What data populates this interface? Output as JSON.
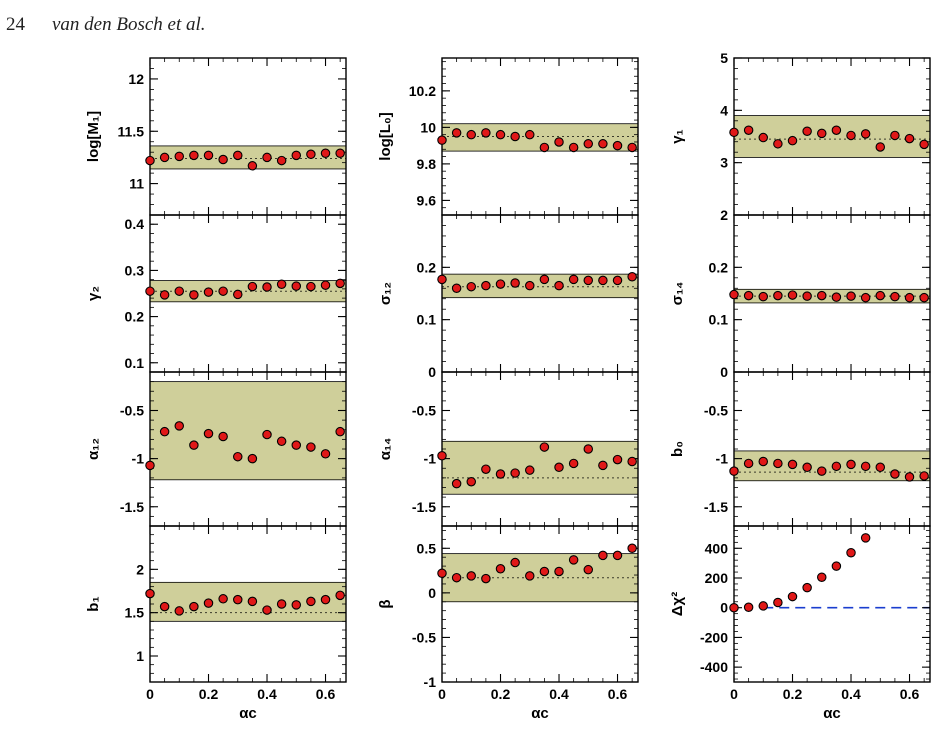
{
  "header": {
    "page_number": "24",
    "running_head": "van den Bosch et al."
  },
  "colors": {
    "band_fill": "#cfcf9a",
    "marker_fill": "#e01818",
    "reference_dash": "#1a3ecf"
  },
  "chart_data": [
    {
      "type": "scatter",
      "ylabel": "log[M₁]",
      "ylim": [
        10.7,
        12.2
      ],
      "yticks": [
        11,
        11.5,
        12
      ],
      "band": [
        11.14,
        11.36
      ],
      "ref": 11.24,
      "x": [
        0,
        0.05,
        0.1,
        0.15,
        0.2,
        0.25,
        0.3,
        0.35,
        0.4,
        0.45,
        0.5,
        0.55,
        0.6,
        0.65
      ],
      "y": [
        11.22,
        11.25,
        11.26,
        11.27,
        11.27,
        11.23,
        11.27,
        11.17,
        11.25,
        11.22,
        11.27,
        11.28,
        11.29,
        11.29
      ]
    },
    {
      "type": "scatter",
      "ylabel": "log[L₀]",
      "ylim": [
        9.52,
        10.38
      ],
      "yticks": [
        9.6,
        9.8,
        10,
        10.2
      ],
      "band": [
        9.87,
        10.02
      ],
      "ref": 9.95,
      "x": [
        0,
        0.05,
        0.1,
        0.15,
        0.2,
        0.25,
        0.3,
        0.35,
        0.4,
        0.45,
        0.5,
        0.55,
        0.6,
        0.65
      ],
      "y": [
        9.93,
        9.97,
        9.96,
        9.97,
        9.96,
        9.95,
        9.96,
        9.89,
        9.92,
        9.89,
        9.91,
        9.91,
        9.9,
        9.89
      ]
    },
    {
      "type": "scatter",
      "ylabel": "γ₁",
      "ylim": [
        2,
        5
      ],
      "yticks": [
        2,
        3,
        4,
        5
      ],
      "band": [
        3.1,
        3.9
      ],
      "ref": 3.45,
      "x": [
        0,
        0.05,
        0.1,
        0.15,
        0.2,
        0.25,
        0.3,
        0.35,
        0.4,
        0.45,
        0.5,
        0.55,
        0.6,
        0.65
      ],
      "y": [
        3.58,
        3.62,
        3.48,
        3.36,
        3.42,
        3.6,
        3.56,
        3.62,
        3.52,
        3.55,
        3.3,
        3.52,
        3.46,
        3.35
      ]
    },
    {
      "type": "scatter",
      "ylabel": "γ₂",
      "ylim": [
        0.08,
        0.42
      ],
      "yticks": [
        0.1,
        0.2,
        0.3,
        0.4
      ],
      "band": [
        0.232,
        0.278
      ],
      "ref": 0.255,
      "x": [
        0,
        0.05,
        0.1,
        0.15,
        0.2,
        0.25,
        0.3,
        0.35,
        0.4,
        0.45,
        0.5,
        0.55,
        0.6,
        0.65
      ],
      "y": [
        0.255,
        0.247,
        0.255,
        0.247,
        0.253,
        0.255,
        0.248,
        0.265,
        0.264,
        0.27,
        0.266,
        0.265,
        0.268,
        0.272
      ]
    },
    {
      "type": "scatter",
      "ylabel": "σ₁₂",
      "ylim": [
        0,
        0.3
      ],
      "yticks": [
        0,
        0.1,
        0.2
      ],
      "band": [
        0.142,
        0.187
      ],
      "ref": 0.163,
      "x": [
        0,
        0.05,
        0.1,
        0.15,
        0.2,
        0.25,
        0.3,
        0.35,
        0.4,
        0.45,
        0.5,
        0.55,
        0.6,
        0.65
      ],
      "y": [
        0.177,
        0.16,
        0.163,
        0.165,
        0.168,
        0.17,
        0.165,
        0.177,
        0.165,
        0.177,
        0.175,
        0.175,
        0.175,
        0.182
      ]
    },
    {
      "type": "scatter",
      "ylabel": "σ₁₄",
      "ylim": [
        0,
        0.3
      ],
      "yticks": [
        0,
        0.1,
        0.2
      ],
      "band": [
        0.132,
        0.158
      ],
      "ref": 0.145,
      "x": [
        0,
        0.05,
        0.1,
        0.15,
        0.2,
        0.25,
        0.3,
        0.35,
        0.4,
        0.45,
        0.5,
        0.55,
        0.6,
        0.65
      ],
      "y": [
        0.148,
        0.146,
        0.144,
        0.146,
        0.147,
        0.145,
        0.146,
        0.143,
        0.145,
        0.142,
        0.146,
        0.144,
        0.142,
        0.142
      ]
    },
    {
      "type": "scatter",
      "ylabel": "α₁₂",
      "ylim": [
        -1.7,
        -0.1
      ],
      "yticks": [
        -1.5,
        -1,
        -0.5
      ],
      "band": [
        -1.22,
        -0.2
      ],
      "ref": null,
      "x": [
        0,
        0.05,
        0.1,
        0.15,
        0.2,
        0.25,
        0.3,
        0.35,
        0.4,
        0.45,
        0.5,
        0.55,
        0.6,
        0.65
      ],
      "y": [
        -1.07,
        -0.72,
        -0.66,
        -0.86,
        -0.74,
        -0.77,
        -0.98,
        -1.0,
        -0.75,
        -0.82,
        -0.86,
        -0.88,
        -0.95,
        -0.72
      ]
    },
    {
      "type": "scatter",
      "ylabel": "α₁₄",
      "ylim": [
        -1.7,
        -0.1
      ],
      "yticks": [
        -1.5,
        -1,
        -0.5
      ],
      "band": [
        -1.37,
        -0.82
      ],
      "ref": -1.2,
      "x": [
        0,
        0.05,
        0.1,
        0.15,
        0.2,
        0.25,
        0.3,
        0.35,
        0.4,
        0.45,
        0.5,
        0.55,
        0.6,
        0.65
      ],
      "y": [
        -0.97,
        -1.26,
        -1.24,
        -1.11,
        -1.16,
        -1.15,
        -1.12,
        -0.88,
        -1.09,
        -1.05,
        -0.9,
        -1.07,
        -1.01,
        -1.03
      ]
    },
    {
      "type": "scatter",
      "ylabel": "b₀",
      "ylim": [
        -1.7,
        -0.1
      ],
      "yticks": [
        -1.5,
        -1,
        -0.5
      ],
      "band": [
        -1.23,
        -0.92
      ],
      "ref": -1.14,
      "x": [
        0,
        0.05,
        0.1,
        0.15,
        0.2,
        0.25,
        0.3,
        0.35,
        0.4,
        0.45,
        0.5,
        0.55,
        0.6,
        0.65
      ],
      "y": [
        -1.13,
        -1.05,
        -1.03,
        -1.05,
        -1.06,
        -1.09,
        -1.13,
        -1.08,
        -1.06,
        -1.08,
        -1.09,
        -1.16,
        -1.19,
        -1.18
      ]
    },
    {
      "type": "scatter",
      "ylabel": "b₁",
      "ylim": [
        0.7,
        2.5
      ],
      "yticks": [
        1,
        1.5,
        2
      ],
      "band": [
        1.4,
        1.85
      ],
      "ref": 1.5,
      "x": [
        0,
        0.05,
        0.1,
        0.15,
        0.2,
        0.25,
        0.3,
        0.35,
        0.4,
        0.45,
        0.5,
        0.55,
        0.6,
        0.65
      ],
      "y": [
        1.72,
        1.57,
        1.52,
        1.57,
        1.61,
        1.66,
        1.65,
        1.63,
        1.53,
        1.6,
        1.59,
        1.63,
        1.65,
        1.7
      ]
    },
    {
      "type": "scatter",
      "ylabel": "β",
      "ylim": [
        -1,
        0.75
      ],
      "yticks": [
        -1,
        -0.5,
        0,
        0.5
      ],
      "band": [
        -0.1,
        0.44
      ],
      "ref": 0.17,
      "x": [
        0,
        0.05,
        0.1,
        0.15,
        0.2,
        0.25,
        0.3,
        0.35,
        0.4,
        0.45,
        0.5,
        0.55,
        0.6,
        0.65
      ],
      "y": [
        0.22,
        0.17,
        0.19,
        0.16,
        0.27,
        0.34,
        0.19,
        0.24,
        0.24,
        0.37,
        0.26,
        0.42,
        0.42,
        0.5
      ]
    },
    {
      "type": "scatter",
      "ylabel": "Δχ²",
      "ylim": [
        -500,
        550
      ],
      "yticks": [
        -400,
        -200,
        0,
        200,
        400
      ],
      "band": null,
      "ref": 0,
      "x": [
        0,
        0.05,
        0.1,
        0.15,
        0.2,
        0.25,
        0.3,
        0.35,
        0.4,
        0.45
      ],
      "y": [
        0,
        3,
        12,
        35,
        75,
        135,
        205,
        280,
        370,
        470
      ]
    }
  ],
  "axes": {
    "xlabel": "αc",
    "xlim": [
      0,
      0.67
    ],
    "xticks": [
      "0",
      "0.2",
      "0.4",
      "0.6"
    ]
  }
}
